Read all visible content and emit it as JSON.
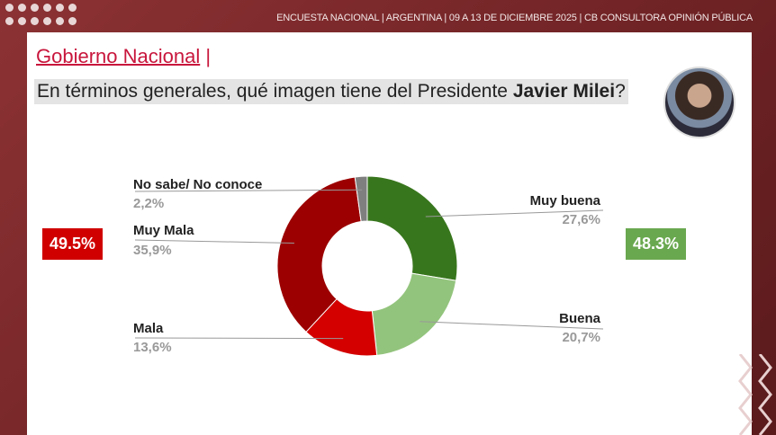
{
  "header": "ENCUESTA NACIONAL  |  ARGENTINA  | 09 A 13 DE DICIEMBRE 2025 | CB CONSULTORA OPINIÓN PÚBLICA",
  "section_title": "Gobierno Nacional",
  "question": {
    "pre": "En términos generales, qué imagen tiene del Presidente ",
    "name": "Javier Milei",
    "post": "?"
  },
  "negative_total": "49.5%",
  "positive_total": "48.3%",
  "colors": {
    "negative": "#d00000",
    "positive": "#6aa84f"
  },
  "chart_data": {
    "type": "pie",
    "donut": true,
    "slices": [
      {
        "label": "Muy buena",
        "value": 27.6,
        "text": "27,6%",
        "color": "#38761d"
      },
      {
        "label": "Buena",
        "value": 20.7,
        "text": "20,7%",
        "color": "#93c47d"
      },
      {
        "label": "Mala",
        "value": 13.6,
        "text": "13,6%",
        "color": "#d40000"
      },
      {
        "label": "Muy Mala",
        "value": 35.9,
        "text": "35,9%",
        "color": "#9c0000"
      },
      {
        "label": "No sabe/ No conoce",
        "value": 2.2,
        "text": "2,2%",
        "color": "#7f7f7f"
      }
    ]
  }
}
